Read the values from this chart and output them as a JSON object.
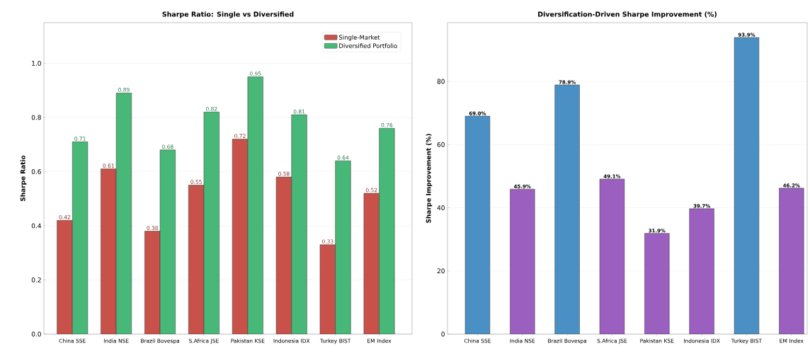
{
  "chart_data": [
    {
      "type": "bar",
      "title": "Sharpe Ratio: Single vs Diversified",
      "ylabel": "Sharpe Ratio",
      "categories": [
        "China SSE",
        "India NSE",
        "Brazil Bovespa",
        "S.Africa JSE",
        "Pakistan KSE",
        "Indonesia IDX",
        "Turkey BIST",
        "EM Index"
      ],
      "series": [
        {
          "name": "Single-Market",
          "color": "#c8524a",
          "values": [
            0.42,
            0.61,
            0.38,
            0.55,
            0.72,
            0.58,
            0.33,
            0.52
          ]
        },
        {
          "name": "Diversified Portfolio",
          "color": "#48b878",
          "values": [
            0.71,
            0.89,
            0.68,
            0.82,
            0.95,
            0.81,
            0.64,
            0.76
          ]
        }
      ],
      "ylim": [
        0,
        1.15
      ],
      "yticks": [
        {
          "value": 0,
          "label": "0.0"
        },
        {
          "value": 0.2,
          "label": "0.2"
        },
        {
          "value": 0.4,
          "label": "0.4"
        },
        {
          "value": 0.6,
          "label": "0.6"
        },
        {
          "value": 0.8,
          "label": "0.8"
        },
        {
          "value": 1.0,
          "label": "1.0"
        }
      ],
      "grid": "y",
      "legend": "top right",
      "data_labels": true
    },
    {
      "type": "bar",
      "title": "Diversification-Driven Sharpe Improvement (%)",
      "ylabel": "Sharpe Improvement (%)",
      "categories": [
        "China SSE",
        "India NSE",
        "Brazil Bovespa",
        "S.Africa JSE",
        "Pakistan KSE",
        "Indonesia IDX",
        "Turkey BIST",
        "EM Index"
      ],
      "values": [
        69.0,
        45.9,
        78.9,
        49.1,
        31.9,
        39.7,
        93.9,
        46.2
      ],
      "colors": [
        "#4a90c4",
        "#9b5fc0",
        "#4a90c4",
        "#9b5fc0",
        "#9b5fc0",
        "#9b5fc0",
        "#4a90c4",
        "#9b5fc0"
      ],
      "value_labels": [
        "69.0%",
        "45.9%",
        "78.9%",
        "49.1%",
        "31.9%",
        "39.7%",
        "93.9%",
        "46.2%"
      ],
      "ylim": [
        0,
        98.6
      ],
      "yticks": [
        0,
        20,
        40,
        60,
        80
      ],
      "grid": "y",
      "legend": false
    }
  ]
}
